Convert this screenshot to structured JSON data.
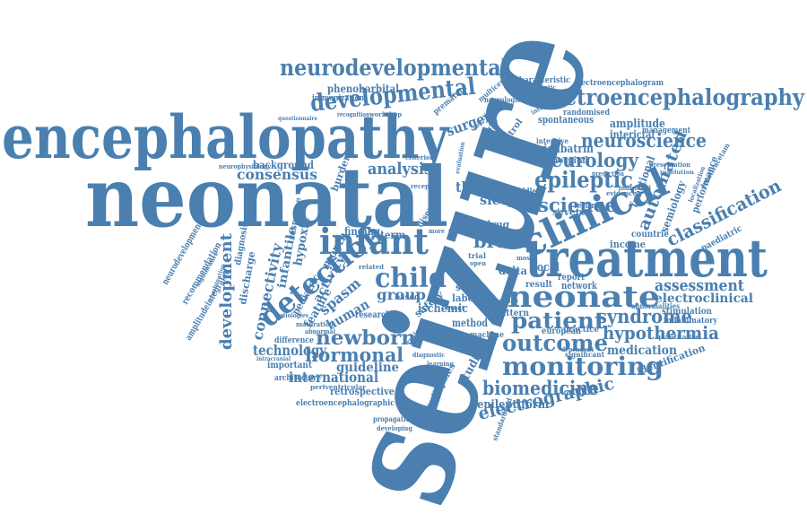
{
  "color": "#4a7fb0",
  "words": {
    "seizure": "seizure",
    "neonatal": "neonatal",
    "encephalopathy": "encephalopathy",
    "treatment": "treatment",
    "neurodevelopmental": "neurodevelopmental",
    "developmental": "developmental",
    "electroencephalography": "electroencephalography",
    "clinical": "clinical",
    "infant": "infant",
    "neonate": "neonate",
    "detection": "detection",
    "child": "child",
    "patient": "patient",
    "monitoring": "monitoring",
    "outcome": "outcome",
    "hypothermia": "hypothermia",
    "newborn": "newborn",
    "hormonal": "hormonal",
    "epileptic": "epileptic",
    "neurology": "neurology",
    "neuroscience": "neuroscience",
    "science": "science",
    "syndrome": "syndrome",
    "automated": "automated",
    "classification": "classification",
    "assessment": "assessment",
    "electroclinical": "electroclinical",
    "biomedicine": "biomedicine",
    "electrographic": "electrographic",
    "international": "international",
    "guideline": "guideline",
    "technology": "technology",
    "development": "development",
    "connectivity": "connectivity",
    "consensus": "consensus",
    "analysis": "analysis",
    "therapy": "therapy",
    "brain": "brain",
    "sleep": "sleep",
    "group": "group",
    "spasm": "spasm",
    "human": "human",
    "epileptiform": "epileptiform",
    "medication": "medication",
    "surgery": "surgery",
    "vigabatrin": "vigabatrin",
    "phenobarbital": "phenobarbital",
    "electroencephalogram": "electroencephalogram",
    "spontaneous": "spontaneous",
    "amplitude": "amplitude",
    "interictal": "interictal",
    "infantile": "infantile",
    "hypoxic": "hypoxic",
    "ischemic": "ischemic",
    "retrospective": "retrospective",
    "electroencephalographic": "electroencephalographic",
    "neurodevelopment": "neurodevelopment",
    "recommendation": "recommendation",
    "amplitudeintegrated": "amplitudeintegrated",
    "feature": "feature",
    "activity": "activity",
    "month": "month",
    "pediatric": "pediatric",
    "paediatric": "paediatric",
    "performance": "performance",
    "semiology": "semiology",
    "functional": "functional",
    "focal": "focal",
    "delta": "delta",
    "severe": "severe",
    "term": "term",
    "drug": "drug",
    "identification": "identification",
    "stimulation": "stimulation",
    "inflammatory": "inflammatory",
    "network": "network",
    "report": "report",
    "result": "result",
    "pattern": "pattern",
    "european": "european",
    "method": "method",
    "machine": "machine",
    "label": "label",
    "safety": "safety",
    "study": "study",
    "studies": "studies",
    "epilepsies": "epilepsies",
    "important": "important",
    "discharge": "discharge",
    "diagnosis": "diagnosis",
    "response": "response",
    "background": "background",
    "immunization": "immunization",
    "premature": "premature",
    "characteristic": "characteristic",
    "hospital": "hospital",
    "management": "management",
    "randomised": "randomised",
    "income": "income",
    "countrie": "countrie",
    "practice": "practice",
    "finding": "finding",
    "based": "based",
    "research": "research",
    "architecture": "architecture",
    "difference": "difference",
    "burden": "burden",
    "injury": "injury",
    "middle": "middle",
    "testing": "testing",
    "neurophysiology": "neurophysiology",
    "neurological": "neurological",
    "intensive": "intensive",
    "control": "control",
    "multicentre": "multicentre",
    "levetiracetam": "levetiracetam",
    "standardized": "standardized",
    "propagation": "propagation",
    "developing": "developing",
    "periventricular": "periventricular",
    "significant": "significant",
    "quantitative": "quantitative",
    "abnormalities": "abnormalities",
    "abnormal": "abnormal",
    "maturation": "maturation",
    "workshop": "workshop",
    "recognition": "recognition",
    "etiologies": "etiologies",
    "event": "event",
    "score": "score",
    "related": "related",
    "more": "more",
    "with": "with",
    "trial": "trial",
    "open": "open",
    "most": "most",
    "evidence": "evidence",
    "individual": "individual",
    "localization": "localization",
    "antiepileptic": "antiepileptic",
    "interpretation": "interpretation",
    "criterion": "criterion",
    "receptor": "receptor",
    "review": "review",
    "health": "health",
    "severity": "severity",
    "diagnostic": "diagnostic",
    "learning": "learning",
    "intracranial": "intracranial",
    "questionnaire": "questionnaire",
    "objective": "objective",
    "evaluation": "evaluation",
    "presentation": "presentation",
    "prediction": "prediction",
    "dependent": "dependent",
    "combination": "combination",
    "significance": "significance",
    "resolution": "resolution",
    "disease": "disease"
  }
}
